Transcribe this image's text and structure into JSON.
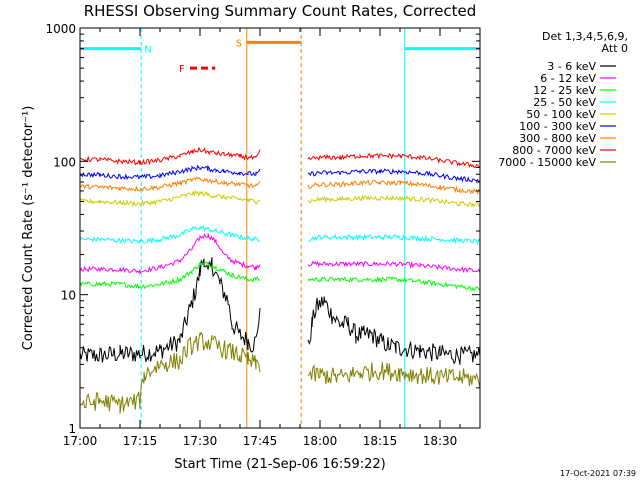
{
  "chart_data": {
    "type": "line",
    "title": "RHESSI Observing Summary Count Rates, Corrected",
    "xlabel": "Start Time (21-Sep-06 16:59:22)",
    "ylabel": "Corrected Count Rate (s⁻¹ detector⁻¹)",
    "x_unit": "minutes since 17:00",
    "xlim": [
      0,
      100
    ],
    "ylim": [
      1,
      1000
    ],
    "yscale": "log",
    "x_ticks": [
      "17:00",
      "17:15",
      "17:30",
      "17:45",
      "18:00",
      "18:15",
      "18:30"
    ],
    "y_ticks": [
      "1",
      "10",
      "100",
      "1000"
    ],
    "legend_position": "right",
    "legend_header": [
      "Det 1,3,4,5,6,9,",
      "Att 0"
    ],
    "series": [
      {
        "name": "3 - 6 keV",
        "color": "#000000",
        "x": [
          0,
          5,
          10,
          15,
          20,
          25,
          27,
          29,
          30,
          31,
          32,
          33,
          35,
          37,
          38,
          40,
          42,
          43,
          44,
          45,
          46,
          56,
          57,
          58,
          59,
          61,
          63,
          65,
          67,
          69,
          71,
          73,
          75,
          77,
          79,
          80,
          85,
          90,
          95,
          100
        ],
        "y": [
          3.5,
          3.5,
          3.6,
          3.6,
          3.8,
          4.5,
          7,
          11,
          15,
          19,
          14,
          17,
          12,
          9,
          6,
          5,
          4.5,
          4.2,
          4.5,
          8,
          null,
          null,
          4,
          6,
          8,
          9,
          7,
          6,
          6,
          5,
          5,
          5,
          4.5,
          4.2,
          4,
          4,
          3.8,
          3.6,
          3.5,
          3.5
        ]
      },
      {
        "name": "6 - 12 keV",
        "color": "#ff00ff",
        "x": [
          0,
          5,
          10,
          15,
          20,
          25,
          28,
          30,
          32,
          34,
          36,
          38,
          40,
          42,
          44,
          45,
          46,
          56,
          57,
          60,
          65,
          70,
          75,
          80,
          85,
          90,
          95,
          100
        ],
        "y": [
          15.5,
          15.5,
          15.5,
          15,
          16,
          18,
          22,
          27,
          28,
          25,
          20,
          18,
          17,
          16.5,
          16,
          17,
          null,
          null,
          17,
          17,
          17,
          17,
          17,
          17,
          16.5,
          16,
          15.5,
          15
        ]
      },
      {
        "name": "12 - 25 keV",
        "color": "#00ff00",
        "x": [
          0,
          5,
          10,
          15,
          20,
          25,
          28,
          30,
          32,
          34,
          36,
          38,
          40,
          42,
          44,
          45,
          46,
          56,
          57,
          60,
          65,
          70,
          75,
          80,
          85,
          90,
          95,
          100
        ],
        "y": [
          12,
          12,
          12,
          11.5,
          12,
          13,
          15,
          17,
          17,
          16,
          15,
          14,
          13.5,
          13,
          13,
          13,
          null,
          null,
          13,
          13,
          13,
          13,
          13,
          13,
          12.5,
          12,
          11.5,
          11
        ]
      },
      {
        "name": "25 - 50 keV",
        "color": "#00ffff",
        "x": [
          0,
          5,
          10,
          15,
          20,
          25,
          28,
          30,
          32,
          34,
          36,
          38,
          40,
          42,
          44,
          45,
          46,
          56,
          57,
          60,
          65,
          70,
          75,
          80,
          85,
          90,
          95,
          100
        ],
        "y": [
          26,
          26,
          25.5,
          25,
          26,
          28,
          31,
          32,
          31,
          30,
          29,
          28,
          27,
          26.5,
          26,
          26,
          null,
          null,
          26,
          27,
          27,
          27,
          27,
          27,
          26.5,
          26,
          25.5,
          25
        ]
      },
      {
        "name": "50 - 100 keV",
        "color": "#cccc00",
        "x": [
          0,
          5,
          10,
          15,
          20,
          25,
          28,
          30,
          32,
          34,
          36,
          38,
          40,
          42,
          44,
          45,
          46,
          56,
          57,
          60,
          65,
          70,
          75,
          80,
          85,
          90,
          95,
          100
        ],
        "y": [
          50,
          50,
          49,
          48,
          50,
          54,
          57,
          58,
          56,
          55,
          54,
          53,
          52,
          51,
          50,
          52,
          null,
          null,
          50,
          52,
          52,
          53,
          53,
          53,
          52,
          50,
          48,
          47
        ]
      },
      {
        "name": "100 - 300 keV",
        "color": "#0000ff",
        "x": [
          0,
          5,
          10,
          15,
          20,
          25,
          28,
          30,
          32,
          34,
          36,
          38,
          40,
          42,
          44,
          45,
          46,
          56,
          57,
          60,
          65,
          70,
          75,
          80,
          85,
          90,
          95,
          100
        ],
        "y": [
          80,
          79,
          77,
          76,
          78,
          84,
          88,
          90,
          88,
          86,
          84,
          83,
          82,
          81,
          80,
          84,
          null,
          null,
          80,
          82,
          82,
          84,
          84,
          84,
          82,
          78,
          74,
          72
        ]
      },
      {
        "name": "300 - 800 keV",
        "color": "#ff8000",
        "x": [
          0,
          5,
          10,
          15,
          20,
          25,
          28,
          30,
          32,
          34,
          36,
          38,
          40,
          42,
          44,
          45,
          46,
          56,
          57,
          60,
          65,
          70,
          75,
          80,
          85,
          90,
          95,
          100
        ],
        "y": [
          65,
          64,
          63,
          62,
          64,
          69,
          72,
          74,
          72,
          71,
          69,
          68,
          67,
          66,
          65,
          68,
          null,
          null,
          65,
          67,
          67,
          69,
          69,
          69,
          67,
          64,
          61,
          59
        ]
      },
      {
        "name": "800 - 7000 keV",
        "color": "#ff0000",
        "x": [
          0,
          5,
          10,
          15,
          20,
          25,
          28,
          30,
          32,
          34,
          36,
          38,
          40,
          42,
          44,
          45,
          46,
          56,
          57,
          60,
          65,
          70,
          75,
          80,
          85,
          90,
          95,
          100
        ],
        "y": [
          104,
          103,
          100,
          98,
          102,
          110,
          118,
          122,
          118,
          115,
          113,
          111,
          109,
          107,
          105,
          118,
          null,
          null,
          104,
          107,
          107,
          110,
          110,
          110,
          107,
          102,
          96,
          92
        ]
      },
      {
        "name": "7000 - 15000 keV",
        "color": "#808000",
        "x": [
          0,
          5,
          10,
          15,
          16,
          20,
          25,
          27,
          30,
          33,
          35,
          37,
          40,
          42,
          44,
          45,
          46,
          56,
          57,
          60,
          65,
          70,
          75,
          80,
          85,
          90,
          95,
          100
        ],
        "y": [
          1.5,
          1.6,
          1.5,
          1.6,
          2.5,
          3,
          3.2,
          4,
          4.5,
          4.3,
          4,
          3.8,
          3.5,
          3.2,
          3,
          3,
          null,
          null,
          2.5,
          2.5,
          2.4,
          2.6,
          2.7,
          2.6,
          2.5,
          2.4,
          2.4,
          2.3
        ]
      }
    ],
    "annotations": [
      {
        "label": "N",
        "type": "night",
        "color": "#00ffff",
        "level": 700,
        "intervals": [
          [
            0,
            15.3
          ],
          [
            81.2,
            100
          ]
        ]
      },
      {
        "label": "F",
        "type": "flare",
        "color": "#ff0000",
        "level": 500,
        "intervals": [
          [
            27.5,
            33.8
          ]
        ]
      },
      {
        "label": "S",
        "type": "saa",
        "color": "#ff8000",
        "level": 780,
        "intervals": [
          [
            41.7,
            55.3
          ]
        ]
      }
    ],
    "vertical_lines": [
      {
        "x": 0,
        "color": "#00ffff",
        "style": "solid"
      },
      {
        "x": 15.3,
        "color": "#00ffff",
        "style": "dashed"
      },
      {
        "x": 41.7,
        "color": "#ff8000",
        "style": "solid"
      },
      {
        "x": 55.3,
        "color": "#ff8000",
        "style": "dashed"
      },
      {
        "x": 81.2,
        "color": "#00ffff",
        "style": "solid"
      },
      {
        "x": 100,
        "color": "#00ffff",
        "style": "dashed"
      }
    ]
  },
  "footer": {
    "timestamp": "17-Oct-2021 07:39"
  }
}
